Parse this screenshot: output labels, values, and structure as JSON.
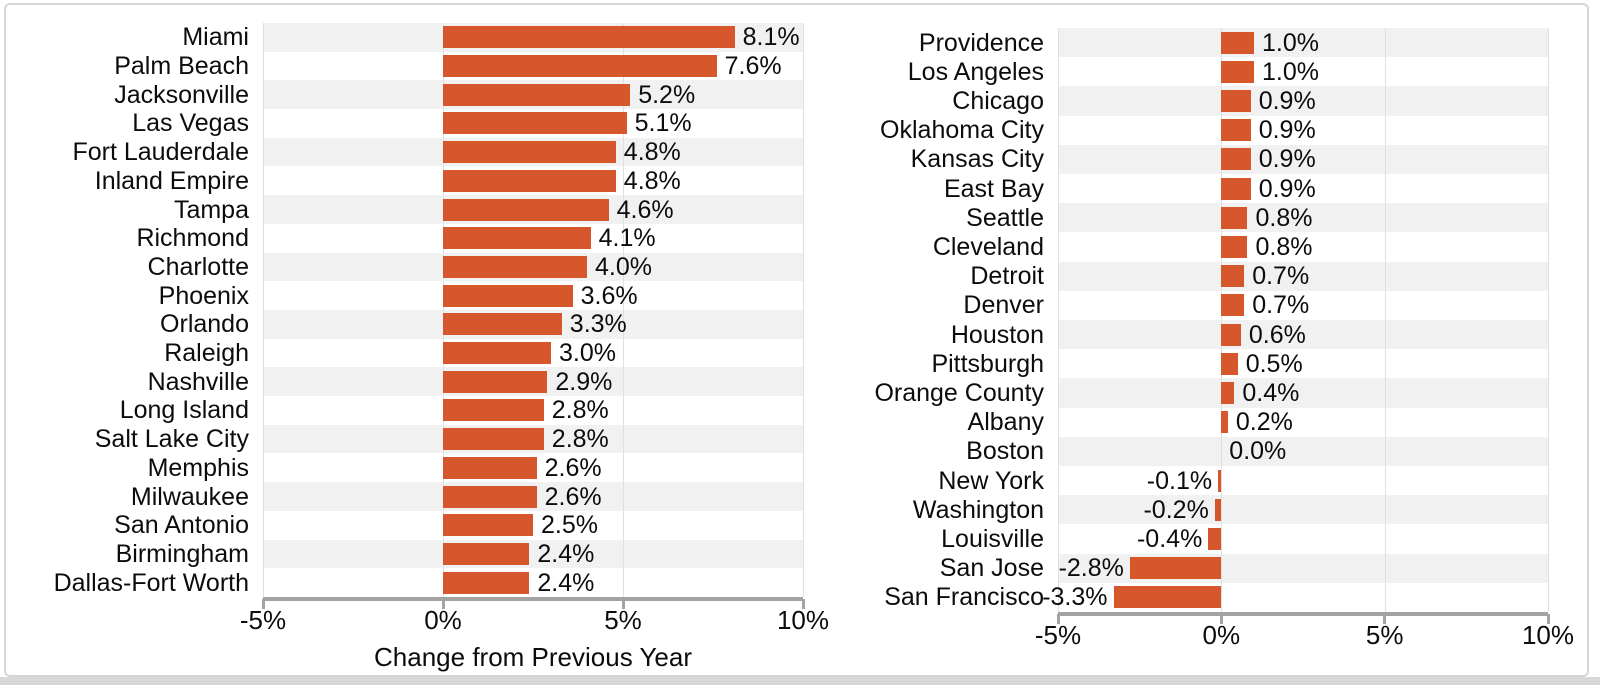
{
  "appearance": {
    "bar_color": "#d5572b",
    "stripe_color": "#f1f1f1",
    "axis_color": "#a3a3a3",
    "grid_color": "#e0e0e0",
    "card_border_color": "#d6d6d6",
    "bottom_strip_color": "#d7d7d7",
    "text_color": "#0c0c0c"
  },
  "chart_data": [
    {
      "type": "bar",
      "orientation": "horizontal",
      "title": "",
      "xlabel": "Change from Previous Year",
      "ylabel": "",
      "xlim": [
        -5,
        10
      ],
      "x_ticks": [
        -5,
        0,
        5,
        10
      ],
      "x_tick_labels": [
        "-5%",
        "0%",
        "5%",
        "10%"
      ],
      "grid": true,
      "legend": "none",
      "categories": [
        "Miami",
        "Palm Beach",
        "Jacksonville",
        "Las Vegas",
        "Fort Lauderdale",
        "Inland Empire",
        "Tampa",
        "Richmond",
        "Charlotte",
        "Phoenix",
        "Orlando",
        "Raleigh",
        "Nashville",
        "Long Island",
        "Salt Lake City",
        "Memphis",
        "Milwaukee",
        "San Antonio",
        "Birmingham",
        "Dallas-Fort Worth"
      ],
      "values": [
        8.1,
        7.6,
        5.2,
        5.1,
        4.8,
        4.8,
        4.6,
        4.1,
        4.0,
        3.6,
        3.3,
        3.0,
        2.9,
        2.8,
        2.8,
        2.6,
        2.6,
        2.5,
        2.4,
        2.4
      ],
      "value_labels": [
        "8.1%",
        "7.6%",
        "5.2%",
        "5.1%",
        "4.8%",
        "4.8%",
        "4.6%",
        "4.1%",
        "4.0%",
        "3.6%",
        "3.3%",
        "3.0%",
        "2.9%",
        "2.8%",
        "2.8%",
        "2.6%",
        "2.6%",
        "2.5%",
        "2.4%",
        "2.4%"
      ]
    },
    {
      "type": "bar",
      "orientation": "horizontal",
      "title": "",
      "xlabel": "",
      "ylabel": "",
      "xlim": [
        -5,
        10
      ],
      "x_ticks": [
        -5,
        0,
        5,
        10
      ],
      "x_tick_labels": [
        "-5%",
        "0%",
        "5%",
        "10%"
      ],
      "grid": true,
      "legend": "none",
      "categories": [
        "Providence",
        "Los Angeles",
        "Chicago",
        "Oklahoma City",
        "Kansas City",
        "East Bay",
        "Seattle",
        "Cleveland",
        "Detroit",
        "Denver",
        "Houston",
        "Pittsburgh",
        "Orange County",
        "Albany",
        "Boston",
        "New York",
        "Washington",
        "Louisville",
        "San Jose",
        "San Francisco"
      ],
      "values": [
        1.0,
        1.0,
        0.9,
        0.9,
        0.9,
        0.9,
        0.8,
        0.8,
        0.7,
        0.7,
        0.6,
        0.5,
        0.4,
        0.2,
        0.0,
        -0.1,
        -0.2,
        -0.4,
        -2.8,
        -3.3
      ],
      "value_labels": [
        "1.0%",
        "1.0%",
        "0.9%",
        "0.9%",
        "0.9%",
        "0.9%",
        "0.8%",
        "0.8%",
        "0.7%",
        "0.7%",
        "0.6%",
        "0.5%",
        "0.4%",
        "0.2%",
        "0.0%",
        "-0.1%",
        "-0.2%",
        "-0.4%",
        "-2.8%",
        "-3.3%"
      ]
    }
  ]
}
